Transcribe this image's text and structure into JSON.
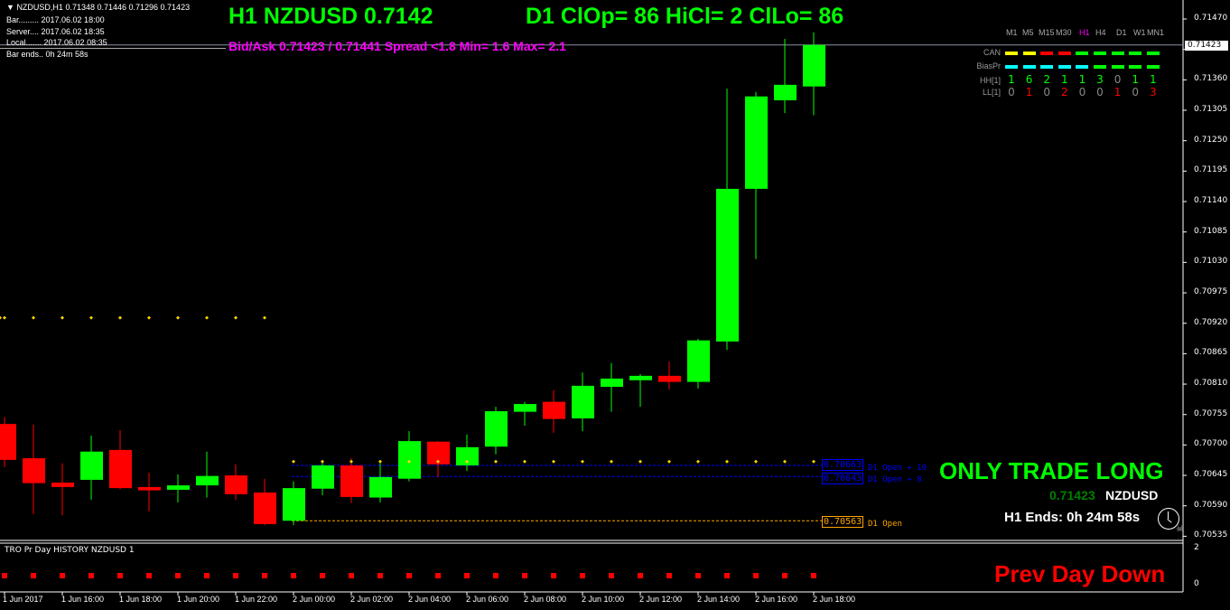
{
  "header": {
    "symbol_line": "NZDUSD,H1  0.71348 0.71446 0.71296 0.71423",
    "bar": "Bar......... 2017.06.02 18:00",
    "server": "Server.... 2017.06.02 18:35",
    "local": "Local....... 2017.06.02 08:35",
    "bar_ends": "Bar ends.. 0h 24m 58s",
    "title_left": "H1 NZDUSD 0.7142",
    "title_right": "D1 ClOp= 86 HiCl= 2 ClLo= 86",
    "bidask": "Bid/Ask 0.71423 / 0.71441  Spread  <1.8  Min= 1.6  Max= 2.1"
  },
  "panel": {
    "timeframes": [
      "M1",
      "M5",
      "M15",
      "M30",
      "H1",
      "H4",
      "D1",
      "W1",
      "MN1"
    ],
    "active_timeframe": "H1",
    "can_label": "CAN",
    "can_colors": [
      "#ffff00",
      "#ffff00",
      "#ff0000",
      "#ff0000",
      "#00ff00",
      "#00ff00",
      "#00ff00",
      "#00ff00",
      "#00ff00"
    ],
    "bias_label": "BiasPr",
    "bias_colors": [
      "#00ffff",
      "#00ffff",
      "#00ffff",
      "#00ffff",
      "#00ffff",
      "#00ff00",
      "#00ff00",
      "#00ff00",
      "#00ff00"
    ],
    "hh_label": "HH[1]",
    "hh": [
      "1",
      "6",
      "2",
      "1",
      "1",
      "3",
      "0",
      "1",
      "1"
    ],
    "ll_label": "LL[1]",
    "ll": [
      "0",
      "1",
      "0",
      "2",
      "0",
      "0",
      "1",
      "0",
      "3"
    ]
  },
  "signals": {
    "trade": "ONLY TRADE LONG",
    "price": "0.71423",
    "symbol": "NZDUSD",
    "h1_ends": "H1 Ends: 0h 24m 58s"
  },
  "levels": {
    "open_plus10_value": "0.70663",
    "open_plus10_label": "D1 Open + 10",
    "open_plus8_value": "0.70643",
    "open_plus8_label": "D1 Open + 8",
    "open_value": "0.70563",
    "open_label": "D1 Open",
    "current_price": "0.71423"
  },
  "indicator": {
    "title": "TRO Pr Day HISTORY NZDUSD 1",
    "status": "Prev Day Down",
    "axis": [
      "2",
      "0"
    ]
  },
  "colors": {
    "bull": "#00ff00",
    "bear": "#ff0000",
    "dots": "#ffd700",
    "levels": "#0000ff",
    "open": "#ffa500"
  },
  "chart_data": {
    "type": "candlestick",
    "symbol": "NZDUSD",
    "timeframe": "H1",
    "ylim": [
      0.7051,
      0.7149
    ],
    "yticks": [
      "0.71470",
      "0.71415",
      "0.71360",
      "0.71305",
      "0.71250",
      "0.71195",
      "0.71140",
      "0.71085",
      "0.71030",
      "0.70975",
      "0.70920",
      "0.70865",
      "0.70810",
      "0.70755",
      "0.70700",
      "0.70645",
      "0.70590",
      "0.70535"
    ],
    "xlabels": [
      "1 Jun 2017",
      "1 Jun 16:00",
      "1 Jun 18:00",
      "1 Jun 20:00",
      "1 Jun 22:00",
      "2 Jun 00:00",
      "2 Jun 02:00",
      "2 Jun 04:00",
      "2 Jun 06:00",
      "2 Jun 08:00",
      "2 Jun 10:00",
      "2 Jun 12:00",
      "2 Jun 14:00",
      "2 Jun 16:00",
      "2 Jun 18:00"
    ],
    "candles": [
      [
        0.70738,
        0.7075,
        0.7066,
        0.70673
      ],
      [
        0.70676,
        0.70737,
        0.70575,
        0.70631
      ],
      [
        0.70632,
        0.70667,
        0.70573,
        0.70624
      ],
      [
        0.70637,
        0.70717,
        0.70601,
        0.70688
      ],
      [
        0.70691,
        0.70727,
        0.7062,
        0.70622
      ],
      [
        0.70624,
        0.7065,
        0.7058,
        0.70618
      ],
      [
        0.70619,
        0.70647,
        0.70596,
        0.70627
      ],
      [
        0.70627,
        0.70688,
        0.70605,
        0.70644
      ],
      [
        0.70645,
        0.70665,
        0.70601,
        0.70611
      ],
      [
        0.70614,
        0.70639,
        0.70555,
        0.70557
      ],
      [
        0.70563,
        0.70634,
        0.70555,
        0.70622
      ],
      [
        0.70621,
        0.70668,
        0.70609,
        0.70663
      ],
      [
        0.70663,
        0.70676,
        0.70595,
        0.70606
      ],
      [
        0.70605,
        0.70667,
        0.70596,
        0.70642
      ],
      [
        0.70639,
        0.70725,
        0.70634,
        0.70707
      ],
      [
        0.70706,
        0.70707,
        0.70642,
        0.70665
      ],
      [
        0.70663,
        0.70719,
        0.70653,
        0.70696
      ],
      [
        0.70697,
        0.70769,
        0.70683,
        0.70761
      ],
      [
        0.7076,
        0.70778,
        0.70735,
        0.70774
      ],
      [
        0.70778,
        0.70799,
        0.70722,
        0.70747
      ],
      [
        0.70748,
        0.70831,
        0.70725,
        0.70807
      ],
      [
        0.70805,
        0.70848,
        0.7076,
        0.7082
      ],
      [
        0.70817,
        0.70828,
        0.70769,
        0.70825
      ],
      [
        0.70825,
        0.70851,
        0.708,
        0.70814
      ],
      [
        0.70814,
        0.70892,
        0.70802,
        0.70889
      ],
      [
        0.70887,
        0.71344,
        0.70872,
        0.71163
      ],
      [
        0.71163,
        0.71338,
        0.71036,
        0.7133
      ],
      [
        0.71323,
        0.71434,
        0.713,
        0.71351
      ],
      [
        0.71348,
        0.71446,
        0.71296,
        0.71423
      ]
    ],
    "prev_day_dots": 0.7093,
    "day_dots": 0.7067,
    "indicator_value": 0.5
  }
}
